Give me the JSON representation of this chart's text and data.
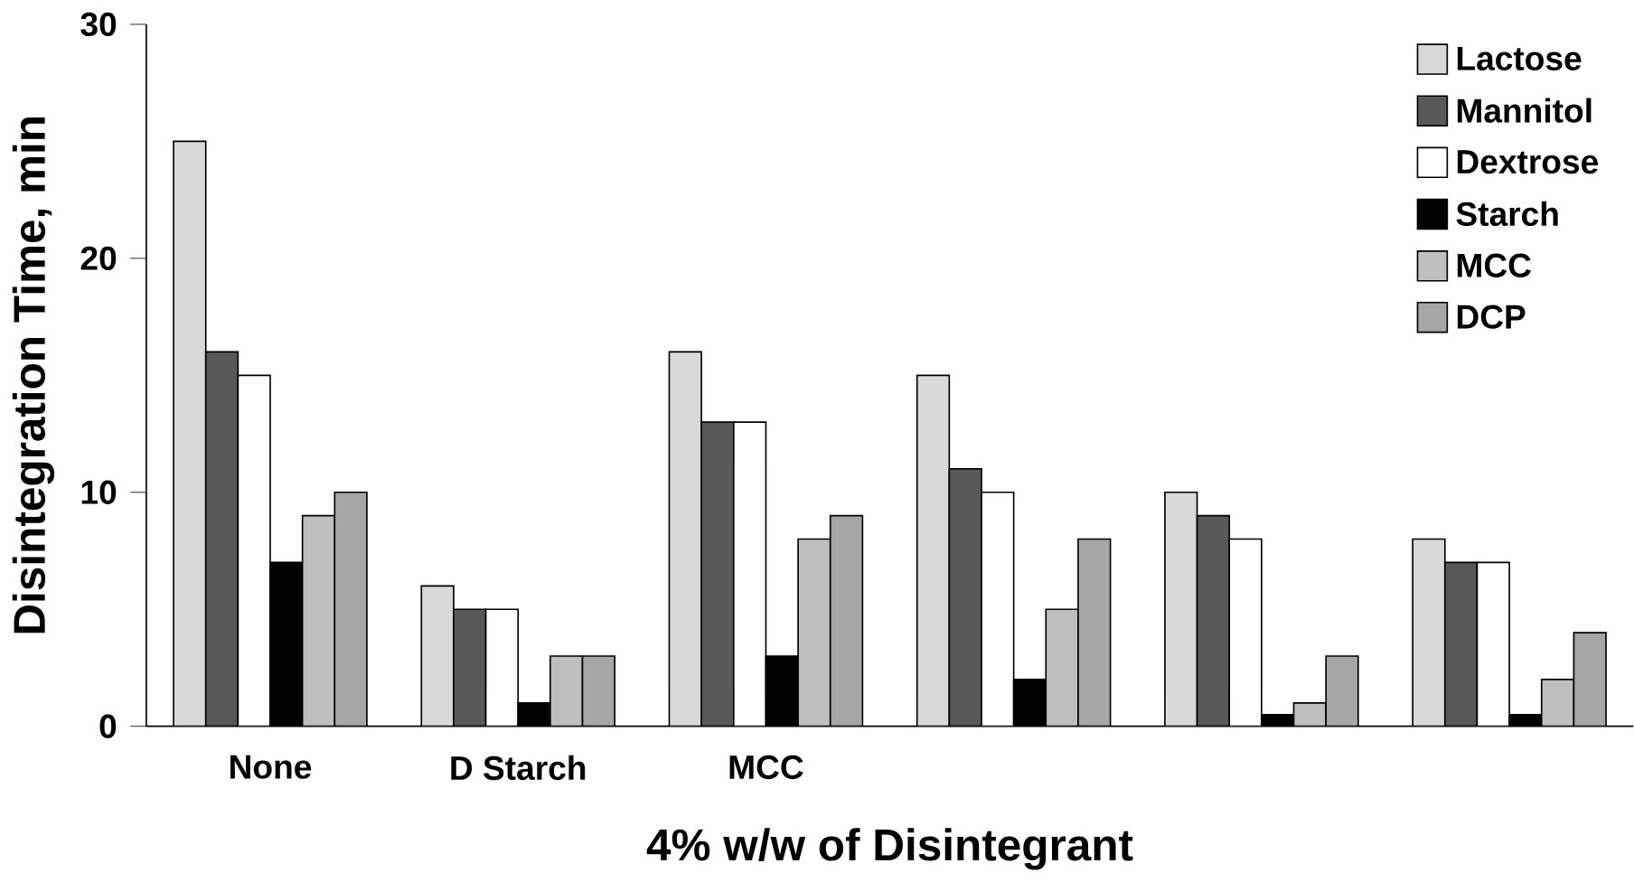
{
  "chart_data": {
    "type": "bar",
    "xlabel": "4% w/w  of  Disintegrant",
    "ylabel": "Disintegration Time, min",
    "categories": [
      "None",
      "D  Starch",
      "MCC",
      null,
      null,
      null
    ],
    "series": [
      {
        "name": "Lactose",
        "color": "#d9d9d9",
        "values": [
          25,
          6,
          16,
          15,
          10,
          8
        ]
      },
      {
        "name": "Mannitol",
        "color": "#595959",
        "values": [
          16,
          5,
          13,
          11,
          9,
          7
        ]
      },
      {
        "name": "Dextrose",
        "color": "#ffffff",
        "values": [
          15,
          5,
          13,
          10,
          8,
          7
        ]
      },
      {
        "name": "Starch",
        "color": "#000000",
        "values": [
          7,
          1,
          3,
          2,
          0.5,
          0.5
        ]
      },
      {
        "name": "MCC",
        "color": "#bfbfbf",
        "values": [
          9,
          3,
          8,
          5,
          1,
          2
        ]
      },
      {
        "name": "DCP",
        "color": "#a6a6a6",
        "values": [
          10,
          3,
          9,
          8,
          3,
          4
        ]
      }
    ],
    "ylim": [
      0,
      30
    ],
    "yticks": [
      0,
      10,
      20,
      30
    ],
    "grid": false,
    "legend": "top right"
  }
}
